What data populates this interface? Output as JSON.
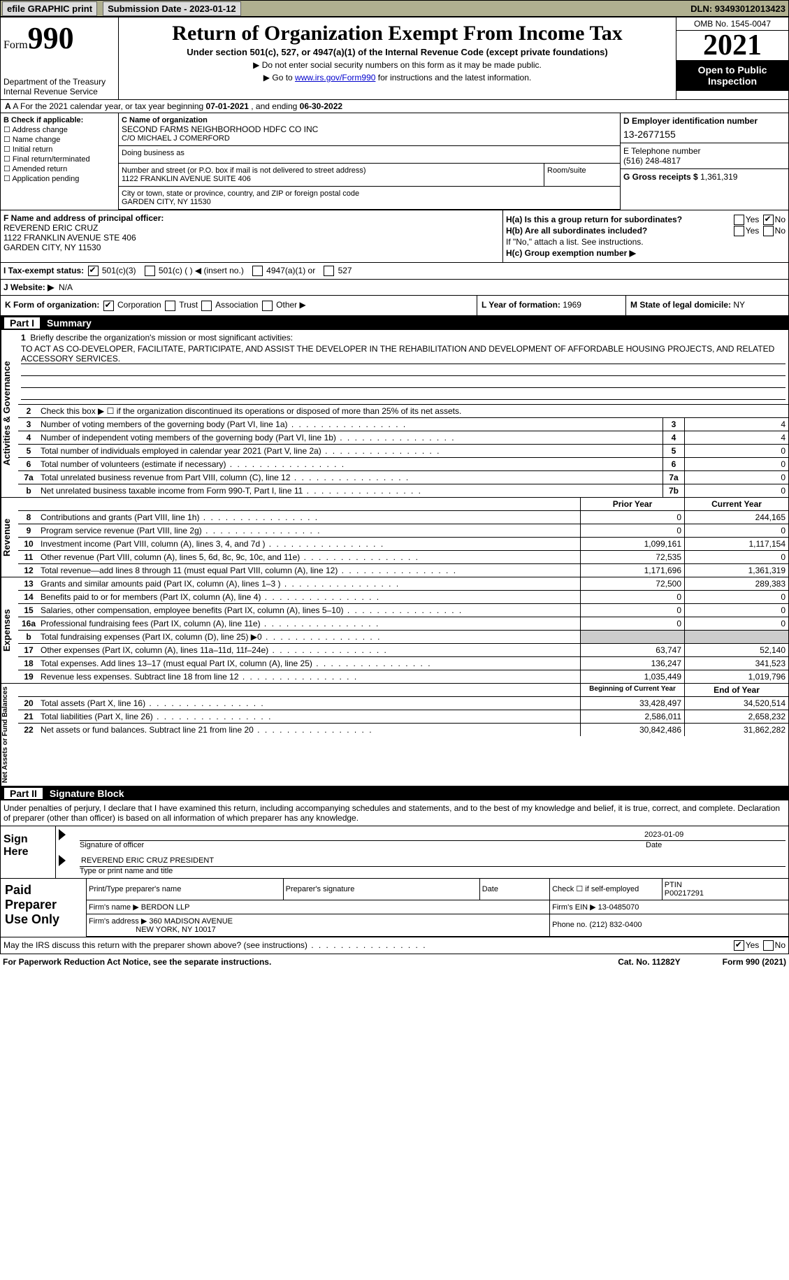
{
  "topbar": {
    "efile": "efile GRAPHIC print",
    "submission": "Submission Date - 2023-01-12",
    "dln": "DLN: 93493012013423"
  },
  "header": {
    "form_word": "Form",
    "form_num": "990",
    "title": "Return of Organization Exempt From Income Tax",
    "sub1": "Under section 501(c), 527, or 4947(a)(1) of the Internal Revenue Code (except private foundations)",
    "sub2": "▶ Do not enter social security numbers on this form as it may be made public.",
    "sub3": "▶ Go to ",
    "link": "www.irs.gov/Form990",
    "sub3b": " for instructions and the latest information.",
    "dept": "Department of the Treasury\nInternal Revenue Service",
    "omb": "OMB No. 1545-0047",
    "year": "2021",
    "pub": "Open to Public Inspection"
  },
  "rowA": {
    "text": "A For the 2021 calendar year, or tax year beginning ",
    "begin": "07-01-2021",
    "mid": " , and ending ",
    "end": "06-30-2022"
  },
  "B": {
    "lbl": "B Check if applicable:",
    "items": [
      "Address change",
      "Name change",
      "Initial return",
      "Final return/terminated",
      "Amended return",
      "Application pending"
    ]
  },
  "C": {
    "lbl": "C Name of organization",
    "name1": "SECOND FARMS NEIGHBORHOOD HDFC CO INC",
    "name2": "C/O MICHAEL J COMERFORD",
    "dba": "Doing business as",
    "addr_lbl": "Number and street (or P.O. box if mail is not delivered to street address)",
    "addr": "1122 FRANKLIN AVENUE SUITE 406",
    "room": "Room/suite",
    "city_lbl": "City or town, state or province, country, and ZIP or foreign postal code",
    "city": "GARDEN CITY, NY  11530"
  },
  "D": {
    "lbl": "D Employer identification number",
    "ein": "13-2677155"
  },
  "E": {
    "lbl": "E Telephone number",
    "tel": "(516) 248-4817"
  },
  "G": {
    "lbl": "G Gross receipts $",
    "val": "1,361,319"
  },
  "F": {
    "lbl": "F Name and address of principal officer:",
    "name": "REVEREND ERIC CRUZ",
    "addr": "1122 FRANKLIN AVENUE STE 406",
    "city": "GARDEN CITY, NY  11530"
  },
  "H": {
    "a": "H(a)  Is this a group return for subordinates?",
    "a_yes": "Yes",
    "a_no": "No",
    "b": "H(b)  Are all subordinates included?",
    "b_note": "If \"No,\" attach a list. See instructions.",
    "c": "H(c)  Group exemption number ▶"
  },
  "I": {
    "lbl": "I    Tax-exempt status:",
    "opts": [
      "501(c)(3)",
      "501(c) (  ) ◀ (insert no.)",
      "4947(a)(1) or",
      "527"
    ]
  },
  "J": {
    "lbl": "J   Website: ▶",
    "val": "N/A"
  },
  "K": {
    "lbl": "K Form of organization:",
    "opts": [
      "Corporation",
      "Trust",
      "Association",
      "Other ▶"
    ]
  },
  "L": {
    "lbl": "L Year of formation:",
    "val": "1969"
  },
  "M": {
    "lbl": "M State of legal domicile:",
    "val": "NY"
  },
  "part1": {
    "num": "Part I",
    "title": "Summary"
  },
  "s1": {
    "vtab": "Activities & Governance",
    "l1": "Briefly describe the organization's mission or most significant activities:",
    "mission": "TO ACT AS CO-DEVELOPER, FACILITATE, PARTICIPATE, AND ASSIST THE DEVELOPER IN THE REHABILITATION AND DEVELOPMENT OF AFFORDABLE HOUSING PROJECTS, AND RELATED ACCESSORY SERVICES.",
    "l2": "Check this box ▶ ☐  if the organization discontinued its operations or disposed of more than 25% of its net assets.",
    "rows": [
      {
        "n": "3",
        "t": "Number of voting members of the governing body (Part VI, line 1a)",
        "b": "3",
        "v": "4"
      },
      {
        "n": "4",
        "t": "Number of independent voting members of the governing body (Part VI, line 1b)",
        "b": "4",
        "v": "4"
      },
      {
        "n": "5",
        "t": "Total number of individuals employed in calendar year 2021 (Part V, line 2a)",
        "b": "5",
        "v": "0"
      },
      {
        "n": "6",
        "t": "Total number of volunteers (estimate if necessary)",
        "b": "6",
        "v": "0"
      },
      {
        "n": "7a",
        "t": "Total unrelated business revenue from Part VIII, column (C), line 12",
        "b": "7a",
        "v": "0"
      },
      {
        "n": "b",
        "t": "Net unrelated business taxable income from Form 990-T, Part I, line 11",
        "b": "7b",
        "v": "0"
      }
    ]
  },
  "s2": {
    "vtab": "Revenue",
    "hdr": {
      "py": "Prior Year",
      "cy": "Current Year"
    },
    "rows": [
      {
        "n": "8",
        "t": "Contributions and grants (Part VIII, line 1h)",
        "py": "0",
        "cy": "244,165"
      },
      {
        "n": "9",
        "t": "Program service revenue (Part VIII, line 2g)",
        "py": "0",
        "cy": "0"
      },
      {
        "n": "10",
        "t": "Investment income (Part VIII, column (A), lines 3, 4, and 7d )",
        "py": "1,099,161",
        "cy": "1,117,154"
      },
      {
        "n": "11",
        "t": "Other revenue (Part VIII, column (A), lines 5, 6d, 8c, 9c, 10c, and 11e)",
        "py": "72,535",
        "cy": "0"
      },
      {
        "n": "12",
        "t": "Total revenue—add lines 8 through 11 (must equal Part VIII, column (A), line 12)",
        "py": "1,171,696",
        "cy": "1,361,319"
      }
    ]
  },
  "s3": {
    "vtab": "Expenses",
    "rows": [
      {
        "n": "13",
        "t": "Grants and similar amounts paid (Part IX, column (A), lines 1–3 )",
        "py": "72,500",
        "cy": "289,383"
      },
      {
        "n": "14",
        "t": "Benefits paid to or for members (Part IX, column (A), line 4)",
        "py": "0",
        "cy": "0"
      },
      {
        "n": "15",
        "t": "Salaries, other compensation, employee benefits (Part IX, column (A), lines 5–10)",
        "py": "0",
        "cy": "0"
      },
      {
        "n": "16a",
        "t": "Professional fundraising fees (Part IX, column (A), line 11e)",
        "py": "0",
        "cy": "0"
      },
      {
        "n": "b",
        "t": "Total fundraising expenses (Part IX, column (D), line 25) ▶0",
        "py": "grey",
        "cy": "grey"
      },
      {
        "n": "17",
        "t": "Other expenses (Part IX, column (A), lines 11a–11d, 11f–24e)",
        "py": "63,747",
        "cy": "52,140"
      },
      {
        "n": "18",
        "t": "Total expenses. Add lines 13–17 (must equal Part IX, column (A), line 25)",
        "py": "136,247",
        "cy": "341,523"
      },
      {
        "n": "19",
        "t": "Revenue less expenses. Subtract line 18 from line 12",
        "py": "1,035,449",
        "cy": "1,019,796"
      }
    ]
  },
  "s4": {
    "vtab": "Net Assets or Fund Balances",
    "hdr": {
      "py": "Beginning of Current Year",
      "cy": "End of Year"
    },
    "rows": [
      {
        "n": "20",
        "t": "Total assets (Part X, line 16)",
        "py": "33,428,497",
        "cy": "34,520,514"
      },
      {
        "n": "21",
        "t": "Total liabilities (Part X, line 26)",
        "py": "2,586,011",
        "cy": "2,658,232"
      },
      {
        "n": "22",
        "t": "Net assets or fund balances. Subtract line 21 from line 20",
        "py": "30,842,486",
        "cy": "31,862,282"
      }
    ]
  },
  "part2": {
    "num": "Part II",
    "title": "Signature Block"
  },
  "sig": {
    "decl": "Under penalties of perjury, I declare that I have examined this return, including accompanying schedules and statements, and to the best of my knowledge and belief, it is true, correct, and complete. Declaration of preparer (other than officer) is based on all information of which preparer has any knowledge.",
    "sign_here": "Sign Here",
    "sig_officer": "Signature of officer",
    "date": "2023-01-09",
    "date_lbl": "Date",
    "name": "REVEREND ERIC CRUZ  PRESIDENT",
    "name_lbl": "Type or print name and title"
  },
  "prep": {
    "lbl": "Paid Preparer Use Only",
    "h1": "Print/Type preparer's name",
    "h2": "Preparer's signature",
    "h3": "Date",
    "h4": "Check ☐ if self-employed",
    "h5": "PTIN",
    "ptin": "P00217291",
    "firm_lbl": "Firm's name   ▶",
    "firm": "BERDON LLP",
    "ein_lbl": "Firm's EIN ▶",
    "ein": "13-0485070",
    "addr_lbl": "Firm's address ▶",
    "addr": "360 MADISON AVENUE",
    "city": "NEW YORK, NY  10017",
    "ph_lbl": "Phone no.",
    "ph": "(212) 832-0400"
  },
  "disc": {
    "txt": "May the IRS discuss this return with the preparer shown above? (see instructions)",
    "yes": "Yes",
    "no": "No"
  },
  "ftr": {
    "l": "For Paperwork Reduction Act Notice, see the separate instructions.",
    "c": "Cat. No. 11282Y",
    "r": "Form 990 (2021)"
  }
}
